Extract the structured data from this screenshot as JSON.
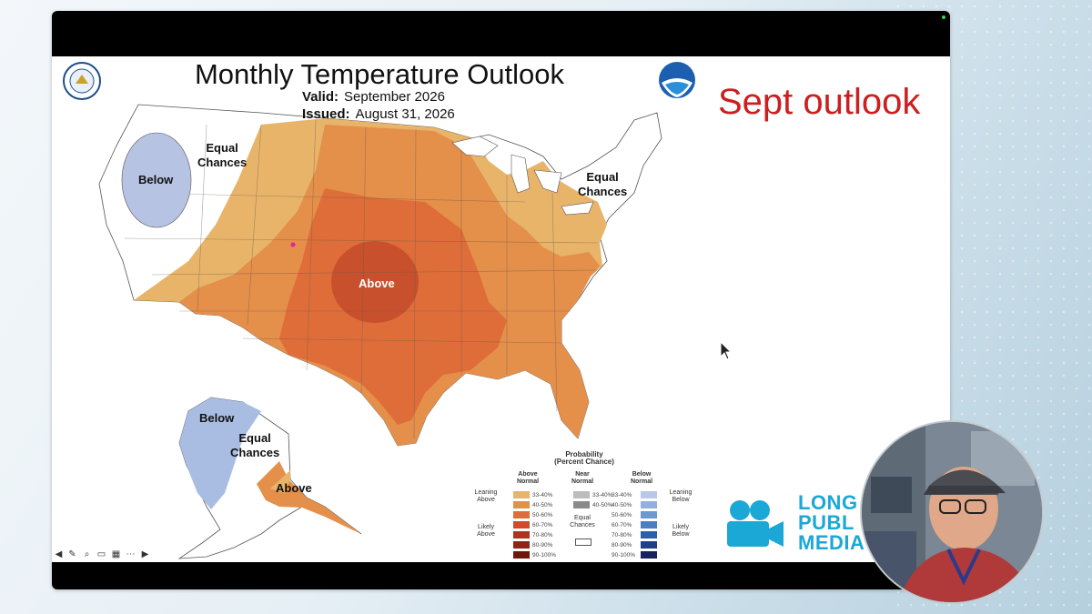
{
  "slide": {
    "title": "Monthly Temperature Outlook",
    "valid_label": "Valid:",
    "valid_value": "September 2026",
    "issued_label": "Issued:",
    "issued_value": "August 31, 2026",
    "annotation": "Sept outlook"
  },
  "map": {
    "labels": {
      "equal_chances_west": "Equal\nChances",
      "below_nw": "Below",
      "above_central": "Above",
      "equal_chances_ne": "Equal\nChances",
      "alaska_below": "Below",
      "alaska_equal_chances": "Equal\nChances",
      "alaska_above": "Above"
    }
  },
  "legend": {
    "title": "Probability\n(Percent Chance)",
    "above_header": "Above\nNormal",
    "near_header": "Near\nNormal",
    "below_header": "Below\nNormal",
    "leaning_above": "Leaning\nAbove",
    "likely_above": "Likely\nAbove",
    "leaning_below": "Leaning\nBelow",
    "likely_below": "Likely\nBelow",
    "equal_chances": "Equal\nChances",
    "ranges": [
      "33-40%",
      "40-50%",
      "50-60%",
      "60-70%",
      "70-80%",
      "80-90%",
      "90-100%"
    ],
    "near_ranges": [
      "33-40%",
      "40-50%"
    ],
    "above_colors": [
      "#e8b46a",
      "#e48f4a",
      "#de6d3a",
      "#cf4a2a",
      "#b3321f",
      "#8f2414",
      "#6b1a0c"
    ],
    "near_colors": [
      "#bdbdbd",
      "#8a8a8a"
    ],
    "below_colors": [
      "#b9c8e6",
      "#93b0dc",
      "#6e98d2",
      "#4c7fc2",
      "#2d5fa8",
      "#1f3f86",
      "#15245c"
    ]
  },
  "branding": {
    "logo_lines": [
      "LONG",
      "PUBL",
      "MEDIA"
    ],
    "colors": {
      "annotation": "#cc1f1f",
      "lpm": "#1ba8d6"
    }
  },
  "toolbar": {
    "icons": [
      "back-icon",
      "pencil-icon",
      "search-icon",
      "captions-icon",
      "slides-icon",
      "more-icon",
      "forward-icon"
    ]
  }
}
